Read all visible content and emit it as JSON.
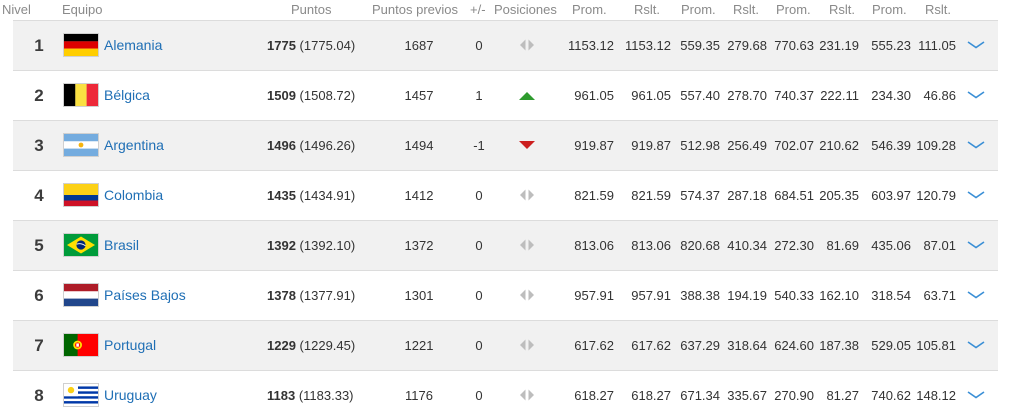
{
  "headers": {
    "nivel": "Nivel",
    "equipo": "Equipo",
    "puntos": "Puntos",
    "puntos_previos": "Puntos previos",
    "cambio": "+/-",
    "posiciones": "Posiciones",
    "prom1": "Prom.",
    "rslt1": "Rslt.",
    "prom2": "Prom.",
    "rslt2": "Rslt.",
    "prom3": "Prom.",
    "rslt3": "Rslt.",
    "prom4": "Prom.",
    "rslt4": "Rslt."
  },
  "colors": {
    "link": "#1f6fb5",
    "up": "#2e9b2e",
    "down": "#cc1f1f",
    "neutral": "#bdbdbd"
  },
  "rows": [
    {
      "rank": "1",
      "flag": "germany-flag-icon",
      "team": "Alemania",
      "pts": "1775",
      "pts_exact": "(1775.04)",
      "prev": "1687",
      "change": "0",
      "trend": "neutral",
      "prom1": "1153.12",
      "rslt1": "1153.12",
      "prom2": "559.35",
      "rslt2": "279.68",
      "prom3": "770.63",
      "rslt3": "231.19",
      "prom4": "555.23",
      "rslt4": "111.05"
    },
    {
      "rank": "2",
      "flag": "belgium-flag-icon",
      "team": "Bélgica",
      "pts": "1509",
      "pts_exact": "(1508.72)",
      "prev": "1457",
      "change": "1",
      "trend": "up",
      "prom1": "961.05",
      "rslt1": "961.05",
      "prom2": "557.40",
      "rslt2": "278.70",
      "prom3": "740.37",
      "rslt3": "222.11",
      "prom4": "234.30",
      "rslt4": "46.86"
    },
    {
      "rank": "3",
      "flag": "argentina-flag-icon",
      "team": "Argentina",
      "pts": "1496",
      "pts_exact": "(1496.26)",
      "prev": "1494",
      "change": "-1",
      "trend": "down",
      "prom1": "919.87",
      "rslt1": "919.87",
      "prom2": "512.98",
      "rslt2": "256.49",
      "prom3": "702.07",
      "rslt3": "210.62",
      "prom4": "546.39",
      "rslt4": "109.28"
    },
    {
      "rank": "4",
      "flag": "colombia-flag-icon",
      "team": "Colombia",
      "pts": "1435",
      "pts_exact": "(1434.91)",
      "prev": "1412",
      "change": "0",
      "trend": "neutral",
      "prom1": "821.59",
      "rslt1": "821.59",
      "prom2": "574.37",
      "rslt2": "287.18",
      "prom3": "684.51",
      "rslt3": "205.35",
      "prom4": "603.97",
      "rslt4": "120.79"
    },
    {
      "rank": "5",
      "flag": "brazil-flag-icon",
      "team": "Brasil",
      "pts": "1392",
      "pts_exact": "(1392.10)",
      "prev": "1372",
      "change": "0",
      "trend": "neutral",
      "prom1": "813.06",
      "rslt1": "813.06",
      "prom2": "820.68",
      "rslt2": "410.34",
      "prom3": "272.30",
      "rslt3": "81.69",
      "prom4": "435.06",
      "rslt4": "87.01"
    },
    {
      "rank": "6",
      "flag": "netherlands-flag-icon",
      "team": "Países Bajos",
      "pts": "1378",
      "pts_exact": "(1377.91)",
      "prev": "1301",
      "change": "0",
      "trend": "neutral",
      "prom1": "957.91",
      "rslt1": "957.91",
      "prom2": "388.38",
      "rslt2": "194.19",
      "prom3": "540.33",
      "rslt3": "162.10",
      "prom4": "318.54",
      "rslt4": "63.71"
    },
    {
      "rank": "7",
      "flag": "portugal-flag-icon",
      "team": "Portugal",
      "pts": "1229",
      "pts_exact": "(1229.45)",
      "prev": "1221",
      "change": "0",
      "trend": "neutral",
      "prom1": "617.62",
      "rslt1": "617.62",
      "prom2": "637.29",
      "rslt2": "318.64",
      "prom3": "624.60",
      "rslt3": "187.38",
      "prom4": "529.05",
      "rslt4": "105.81"
    },
    {
      "rank": "8",
      "flag": "uruguay-flag-icon",
      "team": "Uruguay",
      "pts": "1183",
      "pts_exact": "(1183.33)",
      "prev": "1176",
      "change": "0",
      "trend": "neutral",
      "prom1": "618.27",
      "rslt1": "618.27",
      "prom2": "671.34",
      "rslt2": "335.67",
      "prom3": "270.90",
      "rslt3": "81.27",
      "prom4": "740.62",
      "rslt4": "148.12"
    }
  ]
}
